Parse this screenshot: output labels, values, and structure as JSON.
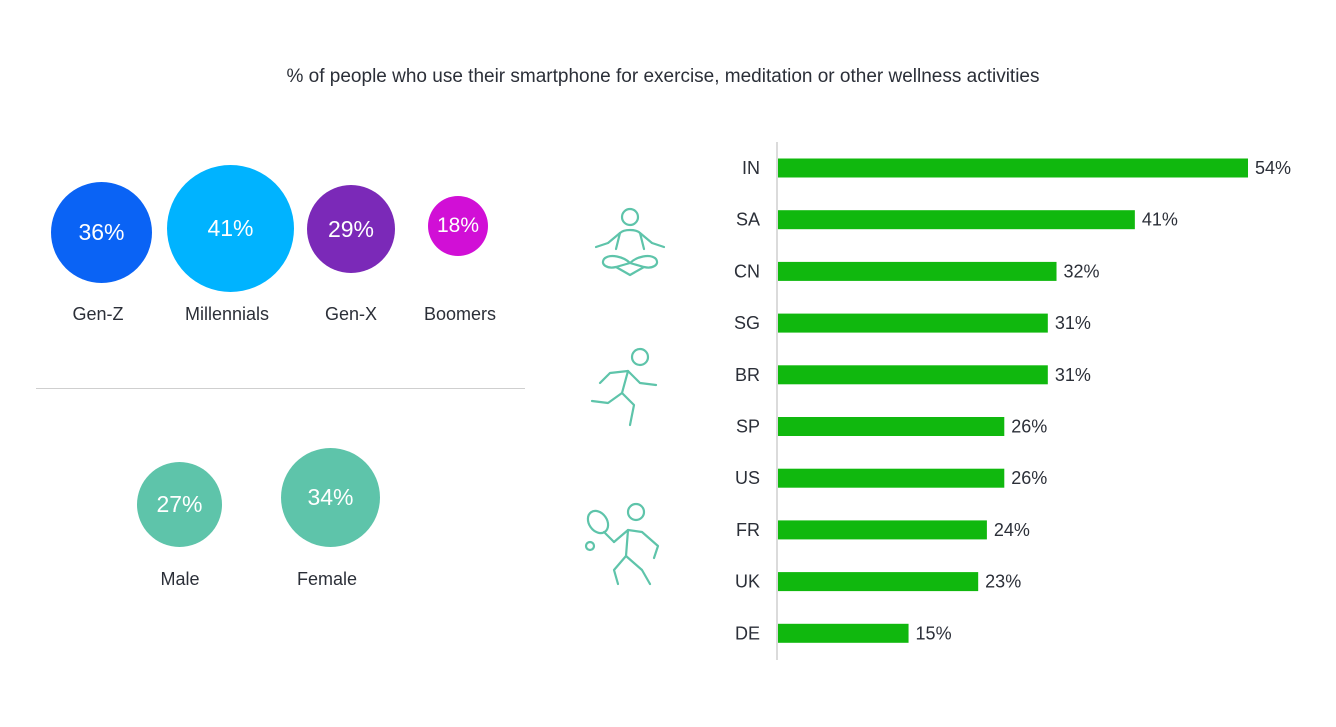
{
  "chart_data": [
    {
      "type": "bubble",
      "group": "generation",
      "categories": [
        "Gen-Z",
        "Millennials",
        "Gen-X",
        "Boomers"
      ],
      "values": [
        36,
        41,
        29,
        18
      ],
      "value_labels": [
        "36%",
        "41%",
        "29%",
        "18%"
      ],
      "colors": [
        "#0a63f5",
        "#00b3ff",
        "#7b29b8",
        "#d10fd6"
      ]
    },
    {
      "type": "bubble",
      "group": "gender",
      "categories": [
        "Male",
        "Female"
      ],
      "values": [
        27,
        34
      ],
      "value_labels": [
        "27%",
        "34%"
      ],
      "colors": [
        "#5ec4aa",
        "#5ec4aa"
      ]
    },
    {
      "type": "bar",
      "orientation": "horizontal",
      "categories": [
        "IN",
        "SA",
        "CN",
        "SG",
        "BR",
        "SP",
        "US",
        "FR",
        "UK",
        "DE"
      ],
      "values": [
        54,
        41,
        32,
        31,
        31,
        26,
        26,
        24,
        23,
        15
      ],
      "value_labels": [
        "54%",
        "41%",
        "32%",
        "31%",
        "31%",
        "26%",
        "26%",
        "24%",
        "23%",
        "15%"
      ],
      "xlim": [
        0,
        54
      ],
      "color": "#10b80e",
      "grid": false
    }
  ],
  "title": "% of people who use their smartphone for exercise, meditation or other wellness activities",
  "generations": [
    {
      "label": "Gen-Z",
      "value": "36%"
    },
    {
      "label": "Millennials",
      "value": "41%"
    },
    {
      "label": "Gen-X",
      "value": "29%"
    },
    {
      "label": "Boomers",
      "value": "18%"
    }
  ],
  "genders": [
    {
      "label": "Male",
      "value": "27%"
    },
    {
      "label": "Female",
      "value": "34%"
    }
  ],
  "icons": [
    "meditation-icon",
    "running-icon",
    "tennis-icon"
  ],
  "colors": {
    "bar": "#10b80e",
    "icon": "#5ec4aa",
    "axis": "#cfcfcf",
    "text": "#2b2f38"
  }
}
